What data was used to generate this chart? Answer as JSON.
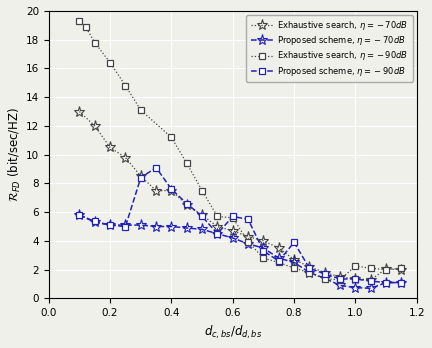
{
  "xlabel": "$d_{c,bs}/d_{d,bs}$",
  "ylabel": "$\\mathcal{R}_{FD}$ (bit/sec/HZ)",
  "xlim": [
    0,
    1.2
  ],
  "ylim": [
    0,
    20
  ],
  "xticks": [
    0,
    0.2,
    0.4,
    0.6,
    0.8,
    1.0,
    1.2
  ],
  "yticks": [
    0,
    2,
    4,
    6,
    8,
    10,
    12,
    14,
    16,
    18,
    20
  ],
  "exhaustive_70_x": [
    0.1,
    0.15,
    0.2,
    0.25,
    0.3,
    0.35,
    0.4,
    0.45,
    0.5,
    0.55,
    0.6,
    0.65,
    0.7,
    0.75,
    0.8,
    0.85,
    0.9,
    0.95,
    1.0,
    1.05,
    1.1,
    1.15
  ],
  "exhaustive_70_y": [
    13.0,
    12.0,
    10.5,
    9.8,
    8.5,
    7.5,
    7.5,
    6.5,
    5.8,
    5.0,
    4.7,
    4.3,
    4.0,
    3.5,
    2.7,
    2.2,
    1.8,
    1.5,
    1.35,
    1.3,
    2.05,
    2.0
  ],
  "proposed_70_x": [
    0.1,
    0.15,
    0.2,
    0.25,
    0.3,
    0.35,
    0.4,
    0.45,
    0.5,
    0.55,
    0.6,
    0.65,
    0.7,
    0.75,
    0.8,
    0.85,
    0.9,
    0.95,
    1.0,
    1.05,
    1.1,
    1.15
  ],
  "proposed_70_y": [
    5.8,
    5.3,
    5.1,
    5.1,
    5.1,
    5.0,
    5.0,
    4.9,
    4.8,
    4.5,
    4.2,
    3.8,
    3.5,
    2.8,
    2.5,
    1.8,
    1.4,
    0.9,
    0.75,
    0.7,
    1.1,
    1.1
  ],
  "exhaustive_90_x": [
    0.1,
    0.12,
    0.15,
    0.2,
    0.25,
    0.3,
    0.4,
    0.45,
    0.5,
    0.55,
    0.6,
    0.65,
    0.7,
    0.75,
    0.8,
    0.85,
    0.9,
    0.95,
    1.0,
    1.05,
    1.1,
    1.15
  ],
  "exhaustive_90_y": [
    19.3,
    18.9,
    17.8,
    16.4,
    14.8,
    13.1,
    11.2,
    9.4,
    7.5,
    5.7,
    5.6,
    3.95,
    2.8,
    2.5,
    2.1,
    1.8,
    1.35,
    1.3,
    2.25,
    2.1,
    2.0,
    2.1
  ],
  "proposed_90_x": [
    0.1,
    0.15,
    0.2,
    0.25,
    0.3,
    0.35,
    0.4,
    0.45,
    0.5,
    0.55,
    0.6,
    0.65,
    0.7,
    0.75,
    0.8,
    0.85,
    0.9,
    0.95,
    1.0,
    1.05,
    1.1,
    1.15
  ],
  "proposed_90_y": [
    5.8,
    5.35,
    5.1,
    5.0,
    8.4,
    9.1,
    7.6,
    6.6,
    5.7,
    4.5,
    5.7,
    5.5,
    3.3,
    2.6,
    3.9,
    2.1,
    1.7,
    1.35,
    1.35,
    1.2,
    1.1,
    1.1
  ],
  "color_dark": "#444444",
  "color_blue": "#2222bb",
  "bg_color": "#f0f0ea"
}
